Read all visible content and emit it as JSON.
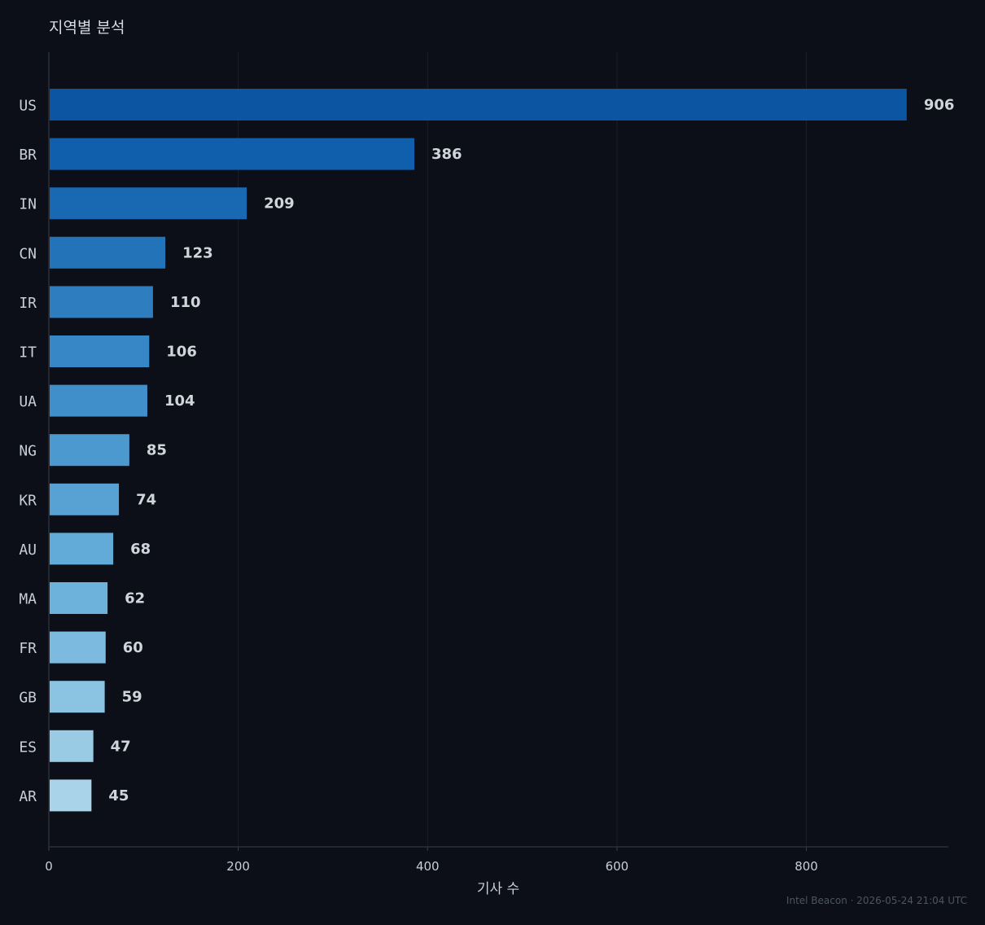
{
  "chart_data": {
    "type": "bar",
    "orientation": "horizontal",
    "title": "지역별 분석",
    "xlabel": "기사 수",
    "ylabel": "",
    "categories": [
      "US",
      "BR",
      "IN",
      "CN",
      "IR",
      "IT",
      "UA",
      "NG",
      "KR",
      "AU",
      "MA",
      "FR",
      "GB",
      "ES",
      "AR"
    ],
    "values": [
      906,
      386,
      209,
      123,
      110,
      106,
      104,
      85,
      74,
      68,
      62,
      60,
      59,
      47,
      45
    ],
    "xlim": [
      0,
      950
    ],
    "xticks": [
      0,
      200,
      400,
      600,
      800
    ],
    "grid": true,
    "legend": false,
    "colors": [
      "#0b55a3",
      "#0f5fac",
      "#1969b2",
      "#2373b8",
      "#2d7dbf",
      "#3786c5",
      "#418fca",
      "#4c99cf",
      "#57a2d3",
      "#62aad7",
      "#6db2db",
      "#7cbbdf",
      "#8bc3e2",
      "#9acbe5",
      "#a9d3e8"
    ]
  },
  "footer": "Intel Beacon · 2026-05-24 21:04 UTC"
}
